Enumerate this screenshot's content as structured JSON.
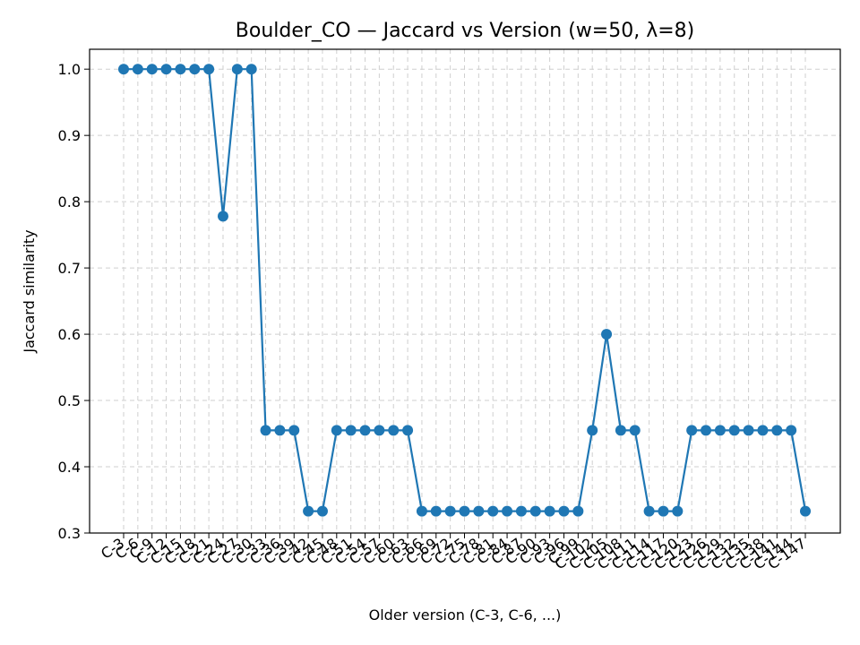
{
  "chart_data": {
    "type": "line",
    "title": "Boulder_CO — Jaccard vs Version (w=50, λ=8)",
    "xlabel": "Older version (C-3, C-6, ...)",
    "ylabel": "Jaccard similarity",
    "ylim": [
      0.3,
      1.03
    ],
    "yticks": [
      "0.3",
      "0.4",
      "0.5",
      "0.6",
      "0.7",
      "0.8",
      "0.9",
      "1.0"
    ],
    "grid": true,
    "color": "#1f77b4",
    "categories": [
      "C-3",
      "C-6",
      "C-9",
      "C-12",
      "C-15",
      "C-18",
      "C-21",
      "C-24",
      "C-27",
      "C-30",
      "C-33",
      "C-36",
      "C-39",
      "C-42",
      "C-45",
      "C-48",
      "C-51",
      "C-54",
      "C-57",
      "C-60",
      "C-63",
      "C-66",
      "C-69",
      "C-72",
      "C-75",
      "C-78",
      "C-81",
      "C-84",
      "C-87",
      "C-90",
      "C-93",
      "C-96",
      "C-99",
      "C-102",
      "C-105",
      "C-108",
      "C-111",
      "C-114",
      "C-117",
      "C-120",
      "C-123",
      "C-126",
      "C-129",
      "C-132",
      "C-135",
      "C-138",
      "C-141",
      "C-144",
      "C-147"
    ],
    "values": [
      1.0,
      1.0,
      1.0,
      1.0,
      1.0,
      1.0,
      1.0,
      0.778,
      1.0,
      1.0,
      0.455,
      0.455,
      0.455,
      0.333,
      0.333,
      0.455,
      0.455,
      0.455,
      0.455,
      0.455,
      0.455,
      0.333,
      0.333,
      0.333,
      0.333,
      0.333,
      0.333,
      0.333,
      0.333,
      0.333,
      0.333,
      0.333,
      0.333,
      0.455,
      0.6,
      0.455,
      0.455,
      0.333,
      0.333,
      0.333,
      0.455,
      0.455,
      0.455,
      0.455,
      0.455,
      0.455,
      0.455,
      0.455,
      0.333
    ]
  }
}
